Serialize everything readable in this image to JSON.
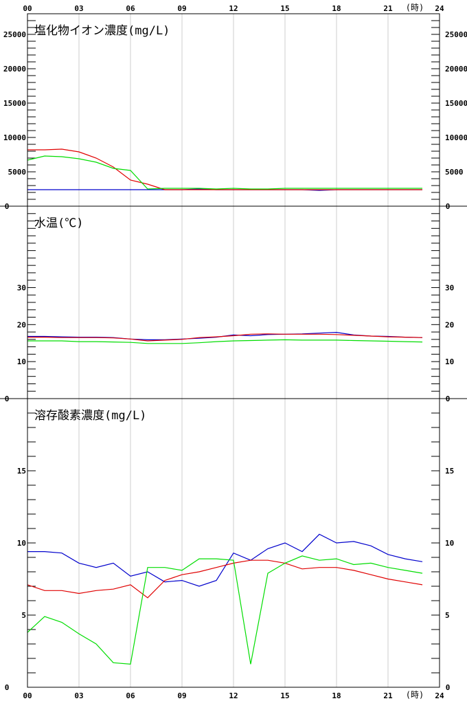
{
  "x_ticks": [
    "00",
    "03",
    "06",
    "09",
    "12",
    "15",
    "18",
    "21",
    "24"
  ],
  "x_unit": "(時)",
  "colors": {
    "red": "#e00000",
    "green": "#00dd00",
    "blue": "#0000cc",
    "grid": "#cccccc"
  },
  "chart_data": [
    {
      "type": "line",
      "title": "塩化物イオン濃度(mg/L)",
      "ylim": [
        0,
        28000
      ],
      "y_ticks": [
        {
          "v": 5000,
          "label": "5000"
        },
        {
          "v": 10000,
          "label": "10000"
        },
        {
          "v": 15000,
          "label": "15000"
        },
        {
          "v": 20000,
          "label": "20000"
        },
        {
          "v": 25000,
          "label": "25000"
        }
      ],
      "x": [
        0,
        1,
        2,
        3,
        4,
        5,
        6,
        7,
        8,
        9,
        10,
        11,
        12,
        13,
        14,
        15,
        16,
        17,
        18,
        19,
        20,
        21,
        22,
        23
      ],
      "series": [
        {
          "color": "blue",
          "values": [
            2400,
            2400,
            2400,
            2400,
            2400,
            2400,
            2400,
            2400,
            2400,
            2400,
            2500,
            2400,
            2400,
            2400,
            2400,
            2400,
            2400,
            2300,
            2400,
            2400,
            2400,
            2400,
            2400,
            2400
          ]
        },
        {
          "color": "red",
          "values": [
            8200,
            8200,
            8300,
            7900,
            7000,
            5700,
            3800,
            3200,
            2400,
            2400,
            2400,
            2400,
            2400,
            2400,
            2400,
            2400,
            2400,
            2400,
            2400,
            2400,
            2400,
            2400,
            2400,
            2400
          ]
        },
        {
          "color": "green",
          "values": [
            6700,
            7300,
            7200,
            6900,
            6400,
            5500,
            5200,
            2500,
            2600,
            2600,
            2600,
            2500,
            2600,
            2500,
            2500,
            2600,
            2600,
            2600,
            2600,
            2600,
            2600,
            2600,
            2600,
            2600
          ]
        }
      ]
    },
    {
      "type": "line",
      "title": "水温(℃)",
      "ylim": [
        0,
        52
      ],
      "y_ticks": [
        {
          "v": 10,
          "label": "10"
        },
        {
          "v": 20,
          "label": "20"
        },
        {
          "v": 30,
          "label": "30"
        }
      ],
      "x": [
        0,
        1,
        2,
        3,
        4,
        5,
        6,
        7,
        8,
        9,
        10,
        11,
        12,
        13,
        14,
        15,
        16,
        17,
        18,
        19,
        20,
        21,
        22,
        23
      ],
      "series": [
        {
          "color": "blue",
          "values": [
            16.8,
            16.8,
            16.7,
            16.6,
            16.6,
            16.5,
            16.1,
            15.9,
            15.9,
            16.1,
            16.3,
            16.6,
            17.2,
            17.0,
            17.3,
            17.4,
            17.5,
            17.7,
            17.9,
            17.2,
            16.9,
            16.8,
            16.6,
            16.5
          ]
        },
        {
          "color": "red",
          "values": [
            16.6,
            16.6,
            16.5,
            16.5,
            16.5,
            16.4,
            16.1,
            15.6,
            15.8,
            16.0,
            16.5,
            16.7,
            17.0,
            17.4,
            17.5,
            17.4,
            17.4,
            17.4,
            17.3,
            17.1,
            16.9,
            16.7,
            16.6,
            16.5
          ]
        },
        {
          "color": "green",
          "values": [
            15.6,
            15.6,
            15.6,
            15.4,
            15.4,
            15.3,
            15.2,
            14.9,
            14.9,
            14.9,
            15.1,
            15.4,
            15.6,
            15.7,
            15.8,
            15.9,
            15.8,
            15.8,
            15.8,
            15.7,
            15.6,
            15.5,
            15.4,
            15.3
          ]
        }
      ]
    },
    {
      "type": "line",
      "title": "溶存酸素濃度(mg/L)",
      "ylim": [
        0,
        20
      ],
      "y_ticks": [
        {
          "v": 5,
          "label": "5"
        },
        {
          "v": 10,
          "label": "10"
        },
        {
          "v": 15,
          "label": "15"
        }
      ],
      "x": [
        0,
        1,
        2,
        3,
        4,
        5,
        6,
        7,
        8,
        9,
        10,
        11,
        12,
        13,
        14,
        15,
        16,
        17,
        18,
        19,
        20,
        21,
        22,
        23
      ],
      "series": [
        {
          "color": "blue",
          "values": [
            9.4,
            9.4,
            9.3,
            8.6,
            8.3,
            8.6,
            7.7,
            8.0,
            7.3,
            7.4,
            7.0,
            7.4,
            9.3,
            8.8,
            9.6,
            10.0,
            9.4,
            10.6,
            10.0,
            10.1,
            9.8,
            9.2,
            8.9,
            8.7
          ]
        },
        {
          "color": "red",
          "values": [
            7.1,
            6.7,
            6.7,
            6.5,
            6.7,
            6.8,
            7.1,
            6.2,
            7.4,
            7.8,
            8.0,
            8.3,
            8.6,
            8.8,
            8.8,
            8.6,
            8.2,
            8.3,
            8.3,
            8.1,
            7.8,
            7.5,
            7.3,
            7.1
          ]
        },
        {
          "color": "green",
          "values": [
            3.8,
            4.9,
            4.5,
            3.7,
            3.0,
            1.7,
            1.6,
            8.3,
            8.3,
            8.1,
            8.9,
            8.9,
            8.8,
            1.6,
            7.9,
            8.6,
            9.1,
            8.8,
            8.9,
            8.5,
            8.6,
            8.3,
            8.1,
            7.9
          ]
        }
      ]
    }
  ]
}
